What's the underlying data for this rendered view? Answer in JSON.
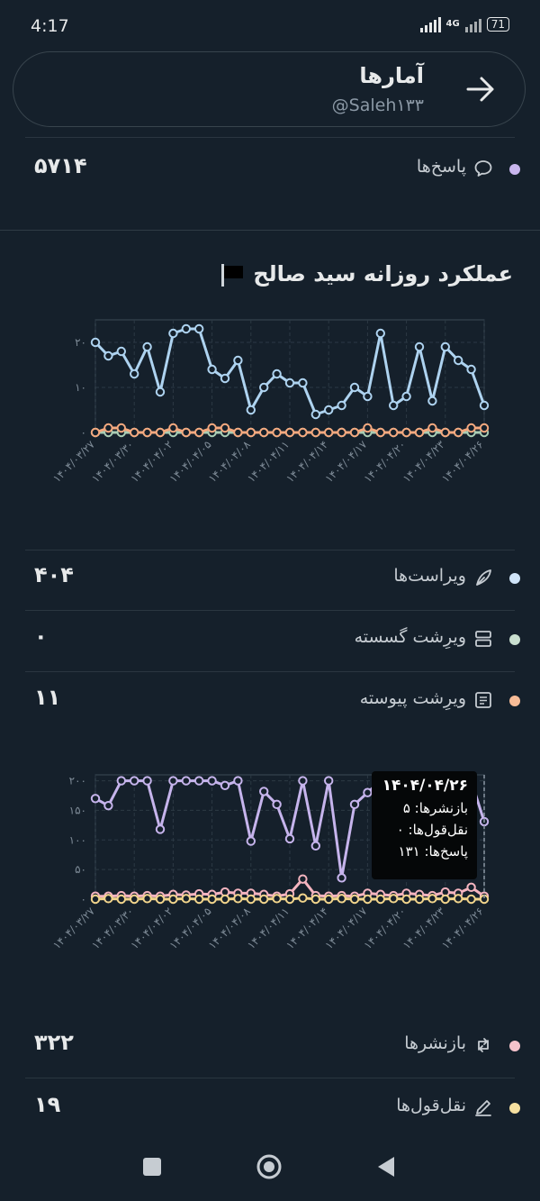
{
  "status_bar": {
    "time": "4:17",
    "network": "4G",
    "battery": "71"
  },
  "header": {
    "title": "آمارها",
    "handle": "@Saleh۱۳۳",
    "back_icon": "arrow-right-icon"
  },
  "replies_top": {
    "label": "پاسخ‌ها",
    "value": "۵۷۱۴",
    "dot_color": "#c9b6ee",
    "icon": "speech-bubble-icon"
  },
  "section_title": "عملکرد روزانه سید صالح",
  "section_flag": "black-flag-icon",
  "chart1_rows": [
    {
      "label": "ویراست‌ها",
      "value": "۴۰۴",
      "dot_color": "#cfe4f8",
      "icon": "feather-icon"
    },
    {
      "label": "ویرِشت گسسته",
      "value": "۰",
      "dot_color": "#c9dfcf",
      "icon": "split-post-icon"
    },
    {
      "label": "ویرِشت پیوسته",
      "value": "۱۱",
      "dot_color": "#f7bc97",
      "icon": "document-icon"
    }
  ],
  "chart2_rows": [
    {
      "label": "بازنشرها",
      "value": "۳۲۲",
      "dot_color": "#f6c3cc",
      "icon": "repost-icon"
    },
    {
      "label": "نقل‌قول‌ها",
      "value": "۱۹",
      "dot_color": "#f6e0a0",
      "icon": "pencil-icon"
    }
  ],
  "tooltip": {
    "date": "۱۴۰۴/۰۴/۲۶",
    "reposts": "بازنشرها: ۵",
    "quotes": "نقل‌قول‌ها: ۰",
    "replies": "پاسخ‌ها: ۱۳۱"
  },
  "chart_data": [
    {
      "type": "line",
      "x": [
        "۱۴۰۴/۰۳/۲۷",
        "۱۴۰۴/۰۳/۲۸",
        "۱۴۰۴/۰۳/۲۹",
        "۱۴۰۴/۰۳/۳۰",
        "۱۴۰۴/۰۳/۳۱",
        "۱۴۰۴/۰۴/۰۱",
        "۱۴۰۴/۰۴/۰۲",
        "۱۴۰۴/۰۴/۰۳",
        "۱۴۰۴/۰۴/۰۴",
        "۱۴۰۴/۰۴/۰۵",
        "۱۴۰۴/۰۴/۰۶",
        "۱۴۰۴/۰۴/۰۷",
        "۱۴۰۴/۰۴/۰۸",
        "۱۴۰۴/۰۴/۰۹",
        "۱۴۰۴/۰۴/۱۰",
        "۱۴۰۴/۰۴/۱۱",
        "۱۴۰۴/۰۴/۱۲",
        "۱۴۰۴/۰۴/۱۳",
        "۱۴۰۴/۰۴/۱۴",
        "۱۴۰۴/۰۴/۱۵",
        "۱۴۰۴/۰۴/۱۶",
        "۱۴۰۴/۰۴/۱۷",
        "۱۴۰۴/۰۴/۱۸",
        "۱۴۰۴/۰۴/۱۹",
        "۱۴۰۴/۰۴/۲۰",
        "۱۴۰۴/۰۴/۲۱",
        "۱۴۰۴/۰۴/۲۲",
        "۱۴۰۴/۰۴/۲۳",
        "۱۴۰۴/۰۴/۲۴",
        "۱۴۰۴/۰۴/۲۵",
        "۱۴۰۴/۰۴/۲۶"
      ],
      "x_tick_labels": [
        "۱۴۰۴/۰۳/۲۷",
        "۱۴۰۴/۰۳/۳۰",
        "۱۴۰۴/۰۴/۰۲",
        "۱۴۰۴/۰۴/۰۵",
        "۱۴۰۴/۰۴/۰۸",
        "۱۴۰۴/۰۴/۱۱",
        "۱۴۰۴/۰۴/۱۴",
        "۱۴۰۴/۰۴/۱۷",
        "۱۴۰۴/۰۴/۲۰",
        "۱۴۰۴/۰۴/۲۳",
        "۱۴۰۴/۰۴/۲۶"
      ],
      "y_ticks": [
        "۰",
        "۱۰",
        "۲۰"
      ],
      "ylim": [
        0,
        25
      ],
      "grid": true,
      "series": [
        {
          "color": "#aed3f0",
          "values": [
            20,
            17,
            18,
            13,
            19,
            9,
            22,
            23,
            23,
            14,
            12,
            16,
            5,
            10,
            13,
            11,
            11,
            4,
            5,
            6,
            10,
            8,
            22,
            6,
            8,
            19,
            7,
            19,
            16,
            14,
            6
          ]
        },
        {
          "color": "#a9cdb4",
          "values": [
            0,
            0,
            0,
            0,
            0,
            0,
            0,
            0,
            0,
            0,
            0,
            0,
            0,
            0,
            0,
            0,
            0,
            0,
            0,
            0,
            0,
            0,
            0,
            0,
            0,
            0,
            0,
            0,
            0,
            0,
            0
          ]
        },
        {
          "color": "#f4a97f",
          "values": [
            0,
            1,
            1,
            0,
            0,
            0,
            1,
            0,
            0,
            1,
            1,
            0,
            0,
            0,
            0,
            0,
            0,
            0,
            0,
            0,
            0,
            1,
            0,
            0,
            0,
            0,
            1,
            0,
            0,
            1,
            1
          ]
        }
      ]
    },
    {
      "type": "line",
      "x": [
        "۱۴۰۴/۰۳/۲۷",
        "۱۴۰۴/۰۳/۲۸",
        "۱۴۰۴/۰۳/۲۹",
        "۱۴۰۴/۰۳/۳۰",
        "۱۴۰۴/۰۳/۳۱",
        "۱۴۰۴/۰۴/۰۱",
        "۱۴۰۴/۰۴/۰۲",
        "۱۴۰۴/۰۴/۰۳",
        "۱۴۰۴/۰۴/۰۴",
        "۱۴۰۴/۰۴/۰۵",
        "۱۴۰۴/۰۴/۰۶",
        "۱۴۰۴/۰۴/۰۷",
        "۱۴۰۴/۰۴/۰۸",
        "۱۴۰۴/۰۴/۰۹",
        "۱۴۰۴/۰۴/۱۰",
        "۱۴۰۴/۰۴/۱۱",
        "۱۴۰۴/۰۴/۱۲",
        "۱۴۰۴/۰۴/۱۳",
        "۱۴۰۴/۰۴/۱۴",
        "۱۴۰۴/۰۴/۱۵",
        "۱۴۰۴/۰۴/۱۶",
        "۱۴۰۴/۰۴/۱۷",
        "۱۴۰۴/۰۴/۱۸",
        "۱۴۰۴/۰۴/۱۹",
        "۱۴۰۴/۰۴/۲۰",
        "۱۴۰۴/۰۴/۲۱",
        "۱۴۰۴/۰۴/۲۲",
        "۱۴۰۴/۰۴/۲۳",
        "۱۴۰۴/۰۴/۲۴",
        "۱۴۰۴/۰۴/۲۵",
        "۱۴۰۴/۰۴/۲۶"
      ],
      "x_tick_labels": [
        "۱۴۰۴/۰۳/۲۷",
        "۱۴۰۴/۰۳/۳۰",
        "۱۴۰۴/۰۴/۰۲",
        "۱۴۰۴/۰۴/۰۵",
        "۱۴۰۴/۰۴/۰۸",
        "۱۴۰۴/۰۴/۱۱",
        "۱۴۰۴/۰۴/۱۴",
        "۱۴۰۴/۰۴/۱۷",
        "۱۴۰۴/۰۴/۲۰",
        "۱۴۰۴/۰۴/۲۳",
        "۱۴۰۴/۰۴/۲۶"
      ],
      "y_ticks": [
        "۰",
        "۵۰",
        "۱۰۰",
        "۱۵۰",
        "۲۰۰"
      ],
      "ylim": [
        0,
        210
      ],
      "grid": true,
      "highlight_index": 30,
      "series": [
        {
          "color": "#c6b4ec",
          "values": [
            170,
            158,
            200,
            200,
            200,
            118,
            200,
            200,
            200,
            200,
            192,
            200,
            98,
            182,
            160,
            102,
            200,
            90,
            200,
            36,
            160,
            180,
            200,
            180,
            195,
            200,
            198,
            180,
            195,
            200,
            131
          ]
        },
        {
          "color": "#f4b4bf",
          "values": [
            5,
            5,
            6,
            5,
            6,
            5,
            8,
            7,
            9,
            8,
            12,
            10,
            10,
            8,
            5,
            9,
            34,
            6,
            5,
            6,
            5,
            10,
            8,
            6,
            10,
            8,
            6,
            12,
            10,
            20,
            5
          ]
        },
        {
          "color": "#f2d58c",
          "values": [
            0,
            1,
            0,
            0,
            1,
            0,
            0,
            1,
            0,
            0,
            0,
            1,
            0,
            0,
            1,
            0,
            2,
            0,
            0,
            1,
            0,
            0,
            0,
            1,
            0,
            0,
            1,
            0,
            1,
            0,
            0
          ]
        }
      ]
    }
  ],
  "nav": {
    "recents_icon": "square-icon",
    "home_icon": "circle-icon",
    "back_icon": "triangle-back-icon"
  }
}
